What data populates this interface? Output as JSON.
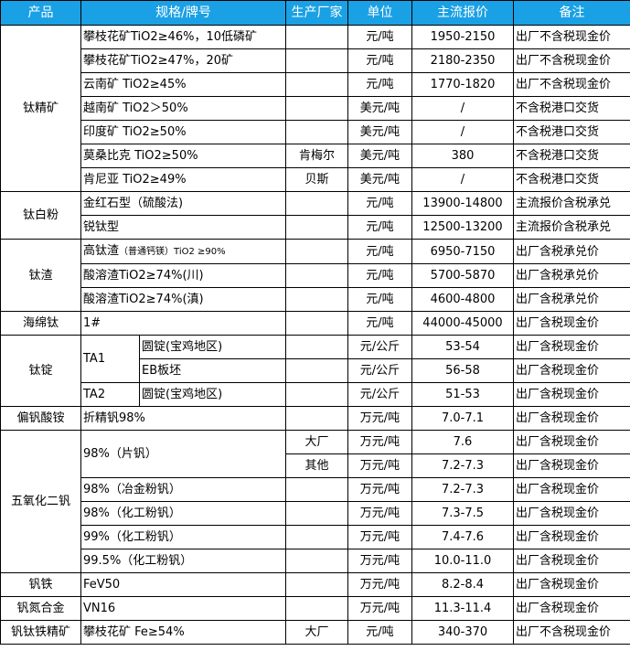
{
  "header": {
    "product": "产品",
    "spec": "规格/牌号",
    "maker": "生产厂家",
    "unit": "单位",
    "price": "主流报价",
    "remark": "备注"
  },
  "header_color": "#1aa0e4",
  "groups": [
    {
      "product": "钛精矿",
      "rows": [
        {
          "spec": "攀枝花矿TiO2≥46%，10低磷矿",
          "maker": "",
          "unit": "元/吨",
          "price": "1950-2150",
          "remark": "出厂不含税现金价"
        },
        {
          "spec": "攀枝花矿TiO2≥47%，20矿",
          "maker": "",
          "unit": "元/吨",
          "price": "2180-2350",
          "remark": "出厂不含税现金价"
        },
        {
          "spec": "云南矿 TiO2≥45%",
          "maker": "",
          "unit": "元/吨",
          "price": "1770-1820",
          "remark": "出厂不含税现金价"
        },
        {
          "spec": "越南矿 TiO2＞50%",
          "maker": "",
          "unit": "美元/吨",
          "price": "/",
          "remark": "不含税港口交货"
        },
        {
          "spec": "印度矿 TiO2≥50%",
          "maker": "",
          "unit": "美元/吨",
          "price": "/",
          "remark": "不含税港口交货"
        },
        {
          "spec": "莫桑比克 TiO2≥50%",
          "maker": "肯梅尔",
          "unit": "美元/吨",
          "price": "380",
          "remark": "不含税港口交货"
        },
        {
          "spec": "肯尼亚 TiO2≥49%",
          "maker": "贝斯",
          "unit": "美元/吨",
          "price": "/",
          "remark": "不含税港口交货"
        }
      ]
    },
    {
      "product": "钛白粉",
      "rows": [
        {
          "spec": "金红石型（硫酸法)",
          "maker": "",
          "unit": "元/吨",
          "price": "13900-14800",
          "remark": "主流报价含税承兑"
        },
        {
          "spec": "锐钛型",
          "maker": "",
          "unit": "元/吨",
          "price": "12500-13200",
          "remark": "主流报价含税承兑"
        }
      ]
    },
    {
      "product": "钛渣",
      "rows": [
        {
          "spec": "高钛渣",
          "spec_note": "（普通钙镁）TiO2 ≥90%",
          "maker": "",
          "unit": "元/吨",
          "price": "6950-7150",
          "remark": "出厂含税承兑价"
        },
        {
          "spec": "酸溶渣TiO2≥74%(川)",
          "maker": "",
          "unit": "元/吨",
          "price": "5700-5870",
          "remark": "出厂含税承兑价"
        },
        {
          "spec": "酸溶渣TiO2≥74%(滇)",
          "maker": "",
          "unit": "元/吨",
          "price": "4600-4800",
          "remark": "出厂含税承兑价"
        }
      ]
    },
    {
      "product": "海绵钛",
      "rows": [
        {
          "spec": "1#",
          "maker": "",
          "unit": "元/吨",
          "price": "44000-45000",
          "remark": "出厂含税现金价"
        }
      ]
    },
    {
      "product": "钛锭",
      "rows": [
        {
          "spec": "TA1",
          "sub": "圆锭(宝鸡地区)",
          "maker": "",
          "unit": "元/公斤",
          "price": "53-54",
          "remark": "出厂含税现金价"
        },
        {
          "spec": null,
          "sub": "EB板坯",
          "maker": "",
          "unit": "元/公斤",
          "price": "56-58",
          "remark": "出厂含税现金价"
        },
        {
          "spec": "TA2",
          "sub": "圆锭(宝鸡地区)",
          "maker": "",
          "unit": "元/公斤",
          "price": "51-53",
          "remark": "出厂含税现金价"
        }
      ]
    },
    {
      "product": "偏钒酸铵",
      "rows": [
        {
          "spec": "折精钒98%",
          "maker": "",
          "unit": "万元/吨",
          "price": "7.0-7.1",
          "remark": "出厂含税现金价"
        }
      ]
    },
    {
      "product": "五氧化二钒",
      "rows": [
        {
          "spec": "98%（片钒）",
          "maker": "大厂",
          "unit": "万元/吨",
          "price": "7.6",
          "remark": "出厂含税现金价"
        },
        {
          "spec": null,
          "maker": "其他",
          "unit": "万元/吨",
          "price": "7.2-7.3",
          "remark": "出厂含税现金价"
        },
        {
          "spec": "98%（冶金粉钒）",
          "maker": "",
          "unit": "万元/吨",
          "price": "7.2-7.3",
          "remark": "出厂含税现金价"
        },
        {
          "spec": "98%（化工粉钒）",
          "maker": "",
          "unit": "万元/吨",
          "price": "7.3-7.5",
          "remark": "出厂含税现金价"
        },
        {
          "spec": "99%（化工粉钒）",
          "maker": "",
          "unit": "万元/吨",
          "price": "7.4-7.6",
          "remark": "出厂含税现金价"
        },
        {
          "spec": "99.5%（化工粉钒）",
          "maker": "",
          "unit": "万元/吨",
          "price": "10.0-11.0",
          "remark": "出厂含税现金价"
        }
      ]
    },
    {
      "product": "钒铁",
      "rows": [
        {
          "spec": "FeV50",
          "maker": "",
          "unit": "万元/吨",
          "price": "8.2-8.4",
          "remark": "出厂含税现金价"
        }
      ]
    },
    {
      "product": "钒氮合金",
      "rows": [
        {
          "spec": "VN16",
          "maker": "",
          "unit": "万元/吨",
          "price": "11.3-11.4",
          "remark": "出厂含税现金价"
        }
      ]
    },
    {
      "product": "钒钛铁精矿",
      "rows": [
        {
          "spec": "攀枝花矿 Fe≥54%",
          "maker": "大厂",
          "unit": "元/吨",
          "price": "340-370",
          "remark": "出厂不含税现金价"
        }
      ]
    }
  ]
}
